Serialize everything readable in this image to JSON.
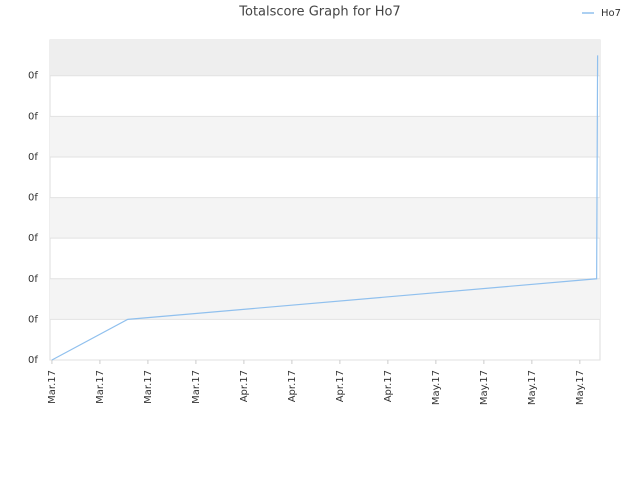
{
  "chart_data": {
    "type": "line",
    "title": "Totalscore Graph for Ho7",
    "x": [
      0,
      1.58,
      11.35,
      11.37
    ],
    "series": [
      {
        "name": "Ho7",
        "color": "#90c0ee",
        "values": [
          0,
          1,
          2,
          7.5
        ]
      }
    ],
    "xlim": [
      -0.04,
      11.42
    ],
    "xticks": [
      {
        "value": 0,
        "label": "Mar.17"
      },
      {
        "value": 1,
        "label": "Mar.17"
      },
      {
        "value": 2,
        "label": "Mar.17"
      },
      {
        "value": 3,
        "label": "Mar.17"
      },
      {
        "value": 4,
        "label": "Apr.17"
      },
      {
        "value": 5,
        "label": "Apr.17"
      },
      {
        "value": 6,
        "label": "Apr.17"
      },
      {
        "value": 7,
        "label": "Apr.17"
      },
      {
        "value": 8,
        "label": "May.17"
      },
      {
        "value": 9,
        "label": "May.17"
      },
      {
        "value": 10,
        "label": "May.17"
      },
      {
        "value": 11,
        "label": "May.17"
      }
    ],
    "ylim": [
      0,
      7.88
    ],
    "yticks": [
      {
        "value": 0,
        "label": "0f"
      },
      {
        "value": 1,
        "label": "0f"
      },
      {
        "value": 2,
        "label": "0f"
      },
      {
        "value": 3,
        "label": "0f"
      },
      {
        "value": 4,
        "label": "0f"
      },
      {
        "value": 5,
        "label": "0f"
      },
      {
        "value": 6,
        "label": "0f"
      },
      {
        "value": 7,
        "label": "0f"
      }
    ],
    "grid": true,
    "legend": "upper right"
  }
}
